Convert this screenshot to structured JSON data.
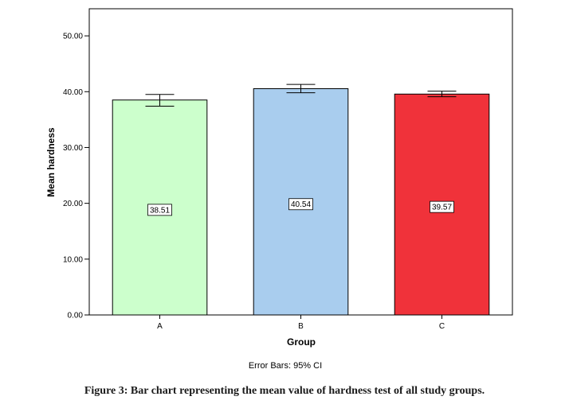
{
  "chart_data": {
    "type": "bar",
    "categories": [
      "A",
      "B",
      "C"
    ],
    "values": [
      38.51,
      40.54,
      39.57
    ],
    "data_labels": [
      "38.51",
      "40.54",
      "39.57"
    ],
    "error_bars": [
      {
        "low": 37.4,
        "high": 39.5
      },
      {
        "low": 39.8,
        "high": 41.3
      },
      {
        "low": 39.1,
        "high": 40.1
      }
    ],
    "bar_colors": [
      "#ccffcc",
      "#a9cdee",
      "#f0323a"
    ],
    "xlabel": "Group",
    "ylabel": "Mean hardness",
    "ylim": [
      0,
      55
    ],
    "yticks": [
      0,
      10,
      20,
      30,
      40,
      50
    ],
    "ytick_labels": [
      "0.00",
      "10.00",
      "20.00",
      "30.00",
      "40.00",
      "50.00"
    ],
    "grid": false,
    "note": "Error Bars: 95% CI"
  },
  "caption": "Figure 3: Bar chart representing the mean value of hardness test of all study groups."
}
